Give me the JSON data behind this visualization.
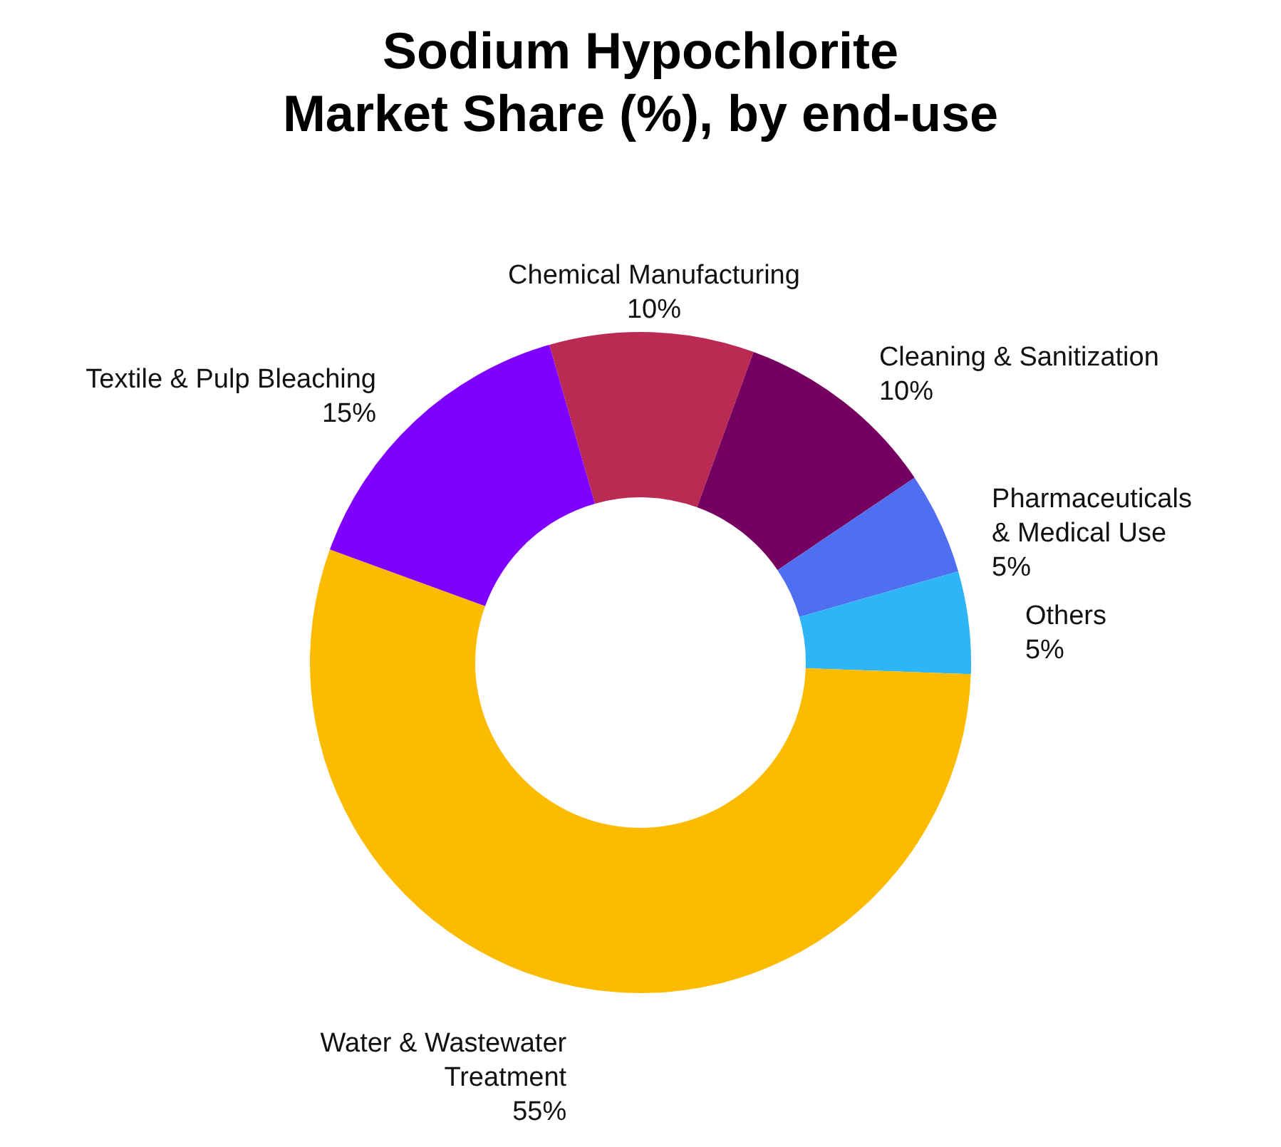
{
  "chart_data": {
    "type": "donut",
    "title": "Sodium Hypochlorite\nMarket Share (%), by end-use",
    "categories": [
      "Chemical Manufacturing",
      "Cleaning & Sanitization",
      "Pharmaceuticals & Medical Use",
      "Others",
      "Water & Wastewater Treatment",
      "Textile & Pulp Bleaching"
    ],
    "values": [
      10,
      10,
      5,
      5,
      55,
      15
    ],
    "value_labels": [
      "10%",
      "10%",
      "5%",
      "5%",
      "55%",
      "15%"
    ],
    "colors": [
      "#ba2a52",
      "#750060",
      "#4f6ef0",
      "#2eb5f5",
      "#fdbb00",
      "#8000ff"
    ]
  }
}
